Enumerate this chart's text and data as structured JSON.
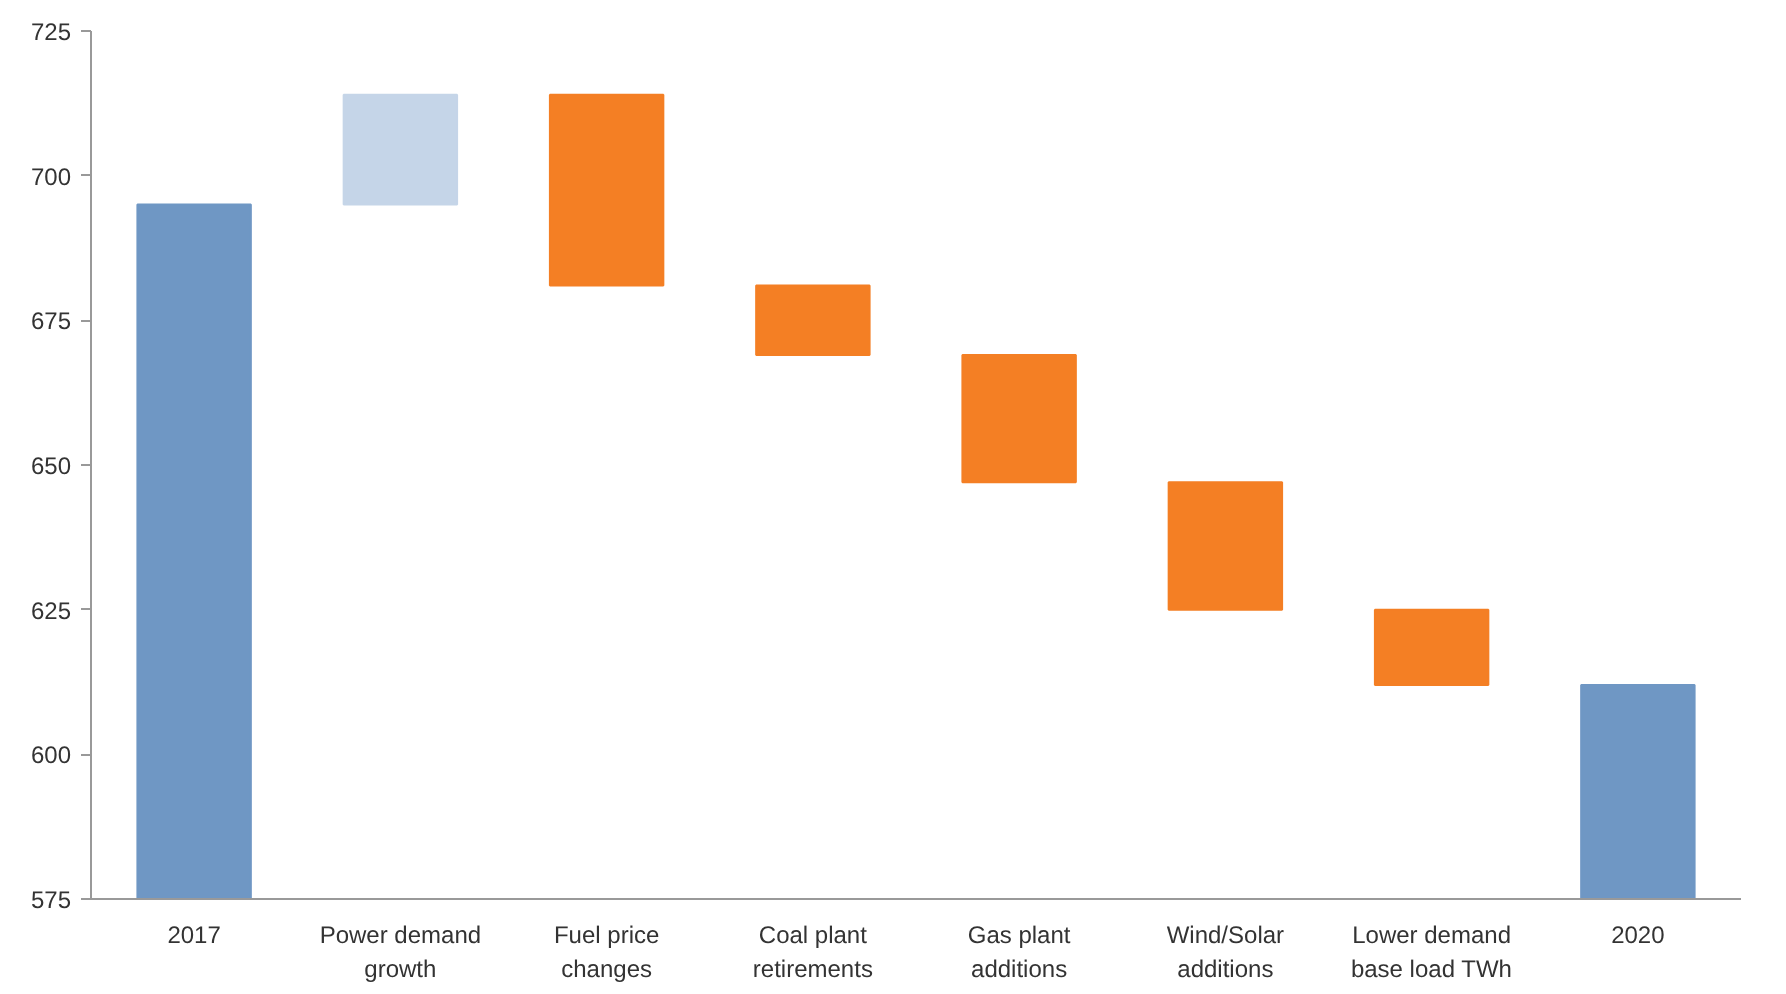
{
  "chart_data": {
    "type": "bar",
    "categories": [
      "2017",
      "Power demand growth",
      "Fuel price changes",
      "Coal plant retirements",
      "Gas plant additions",
      "Wind/Solar additions",
      "Lower demand base load TWh",
      "2020"
    ],
    "values": [
      695,
      19,
      -33,
      -12,
      -22,
      -22,
      -13,
      612
    ],
    "base": [
      null,
      695,
      714,
      681,
      669,
      647,
      625,
      null
    ],
    "colors": [
      "#6f97c4",
      "#c5d5e8",
      "#f47f24",
      "#f47f24",
      "#f47f24",
      "#f47f24",
      "#f47f24",
      "#6f97c4"
    ],
    "ylim": [
      575,
      725
    ],
    "yticks": [
      575,
      600,
      625,
      650,
      675,
      700,
      725
    ],
    "grid": false
  }
}
